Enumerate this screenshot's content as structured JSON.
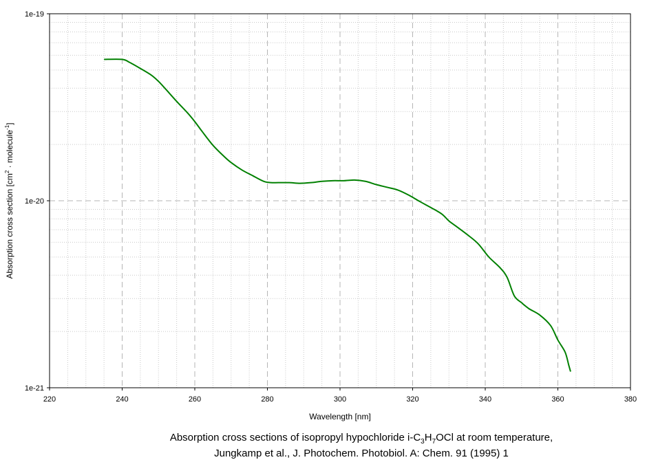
{
  "chart_data": {
    "type": "line",
    "title": "",
    "xlabel": "Wavelength [nm]",
    "ylabel_parts": {
      "pre": "Absorption cross section [cm",
      "sup1": "2",
      "mid": " · molecule",
      "sup2": "-1",
      "post": "]"
    },
    "xlim": [
      220,
      380
    ],
    "ylim": [
      1e-21,
      1e-19
    ],
    "yscale": "log",
    "grid": true,
    "x_ticks": [
      220,
      240,
      260,
      280,
      300,
      320,
      340,
      360,
      380
    ],
    "y_ticks": [
      {
        "value": 1e-19,
        "label": "1e-19"
      },
      {
        "value": 1e-20,
        "label": "1e-20"
      },
      {
        "value": 1e-21,
        "label": "1e-21"
      }
    ],
    "line_color": "#008000",
    "series": [
      {
        "x": [
          235,
          240,
          242,
          245,
          248,
          250,
          252,
          255,
          258,
          260,
          262,
          265,
          268,
          270,
          273,
          276,
          279,
          281,
          283,
          286,
          289,
          292,
          295,
          298,
          301,
          304,
          307,
          310,
          313,
          316,
          319,
          322,
          325,
          328,
          330,
          332,
          335,
          338,
          341,
          344,
          346,
          348,
          350,
          352,
          355,
          358,
          360,
          362,
          363,
          363.5
        ],
        "y": [
          5.7e-20,
          5.7e-20,
          5.5e-20,
          5.1e-20,
          4.7e-20,
          4.35e-20,
          3.95e-20,
          3.4e-20,
          2.95e-20,
          2.65e-20,
          2.35e-20,
          1.98e-20,
          1.73e-20,
          1.6e-20,
          1.46e-20,
          1.36e-20,
          1.27e-20,
          1.25e-20,
          1.25e-20,
          1.25e-20,
          1.24e-20,
          1.25e-20,
          1.27e-20,
          1.28e-20,
          1.28e-20,
          1.29e-20,
          1.27e-20,
          1.22e-20,
          1.18e-20,
          1.14e-20,
          1.07e-20,
          9.9e-21,
          9.2e-21,
          8.5e-21,
          7.8e-21,
          7.3e-21,
          6.6e-21,
          5.9e-21,
          5e-21,
          4.4e-21,
          3.9e-21,
          3.1e-21,
          2.85e-21,
          2.65e-21,
          2.45e-21,
          2.15e-21,
          1.8e-21,
          1.55e-21,
          1.32e-21,
          1.22e-21
        ]
      }
    ]
  },
  "caption": {
    "line1_pre": "Absorption cross sections of isopropyl hypochloride i-C",
    "sub1": "3",
    "mid1": "H",
    "sub2": "7",
    "line1_post": "OCl at room temperature,",
    "line2": "Jungkamp et al., J. Photochem. Photobiol. A: Chem. 91 (1995) 1"
  }
}
